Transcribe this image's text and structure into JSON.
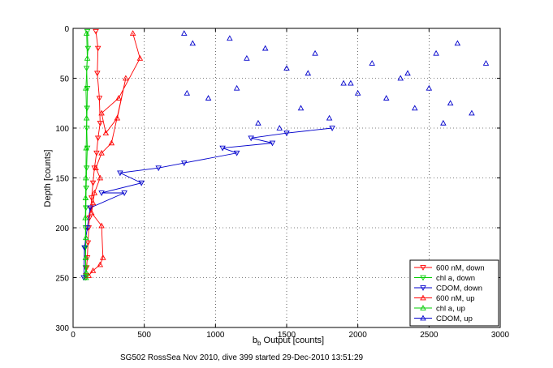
{
  "figure": {
    "caption": "SG502 RossSea Nov 2010, dive 399 started 29-Dec-2010 13:51:29"
  },
  "chart_data": {
    "type": "scatter",
    "title": "",
    "xlabel_main": "b",
    "xlabel_sub": "b",
    "xlabel_rest": " Output [counts]",
    "ylabel": "Depth [counts]",
    "xlim": [
      0,
      3000
    ],
    "ylim": [
      0,
      300
    ],
    "y_reversed": true,
    "grid": true,
    "xticks": [
      0,
      500,
      1000,
      1500,
      2000,
      2500,
      3000
    ],
    "yticks": [
      0,
      50,
      100,
      150,
      200,
      250,
      300
    ],
    "legend_position": "bottom-right",
    "series": [
      {
        "name": "600 nM, down",
        "color": "#ff0000",
        "marker": "triangle-down",
        "line": true,
        "x": [
          160,
          175,
          170,
          185,
          190,
          175,
          165,
          150,
          140,
          130,
          125,
          115,
          110,
          105,
          100,
          95,
          90
        ],
        "y": [
          3,
          20,
          45,
          70,
          95,
          110,
          125,
          140,
          155,
          170,
          180,
          190,
          200,
          215,
          230,
          240,
          248
        ]
      },
      {
        "name": "chl a, down",
        "color": "#00cc00",
        "marker": "triangle-down",
        "line": true,
        "x": [
          100,
          105,
          95,
          100,
          98,
          96,
          100,
          95,
          92,
          90,
          88,
          85,
          88,
          90
        ],
        "y": [
          3,
          20,
          40,
          60,
          80,
          100,
          120,
          140,
          160,
          180,
          200,
          220,
          240,
          250
        ]
      },
      {
        "name": "CDOM, down",
        "color": "#0000cc",
        "marker": "triangle-down",
        "line": true,
        "x": [
          1820,
          1500,
          1250,
          1400,
          1050,
          1150,
          780,
          600,
          330,
          480,
          200,
          360,
          120,
          100,
          80,
          75
        ],
        "y": [
          100,
          105,
          110,
          115,
          120,
          125,
          135,
          140,
          145,
          155,
          165,
          165,
          180,
          200,
          220,
          250
        ]
      },
      {
        "name": "600 nM, up",
        "color": "#ff0000",
        "marker": "triangle-up",
        "line": true,
        "x": [
          420,
          470,
          320,
          200,
          230,
          310,
          370,
          270,
          200,
          160,
          190,
          150,
          140,
          130,
          200,
          210,
          190,
          140,
          110
        ],
        "y": [
          5,
          30,
          70,
          85,
          105,
          90,
          50,
          115,
          125,
          140,
          150,
          165,
          175,
          185,
          198,
          230,
          237,
          243,
          248
        ]
      },
      {
        "name": "chl a, up",
        "color": "#00cc00",
        "marker": "triangle-up",
        "line": true,
        "x": [
          95,
          100,
          90,
          95,
          92,
          90,
          88,
          86,
          90,
          88,
          92,
          90
        ],
        "y": [
          5,
          30,
          60,
          90,
          120,
          150,
          170,
          190,
          210,
          230,
          245,
          250
        ]
      },
      {
        "name": "CDOM, up",
        "color": "#0000cc",
        "marker": "triangle-up",
        "line": false,
        "x": [
          780,
          840,
          1100,
          1220,
          1350,
          1500,
          1700,
          1900,
          2100,
          2300,
          2500,
          2650,
          2800,
          2900,
          2600,
          2400,
          2200,
          2000,
          1800,
          1600,
          1450,
          1300,
          1150,
          950,
          800,
          2550,
          2700,
          2350,
          1950,
          1650
        ],
        "y": [
          5,
          15,
          10,
          30,
          20,
          40,
          25,
          55,
          35,
          50,
          60,
          75,
          85,
          35,
          95,
          80,
          70,
          65,
          90,
          80,
          100,
          95,
          60,
          70,
          65,
          25,
          15,
          45,
          55,
          45
        ]
      }
    ]
  }
}
